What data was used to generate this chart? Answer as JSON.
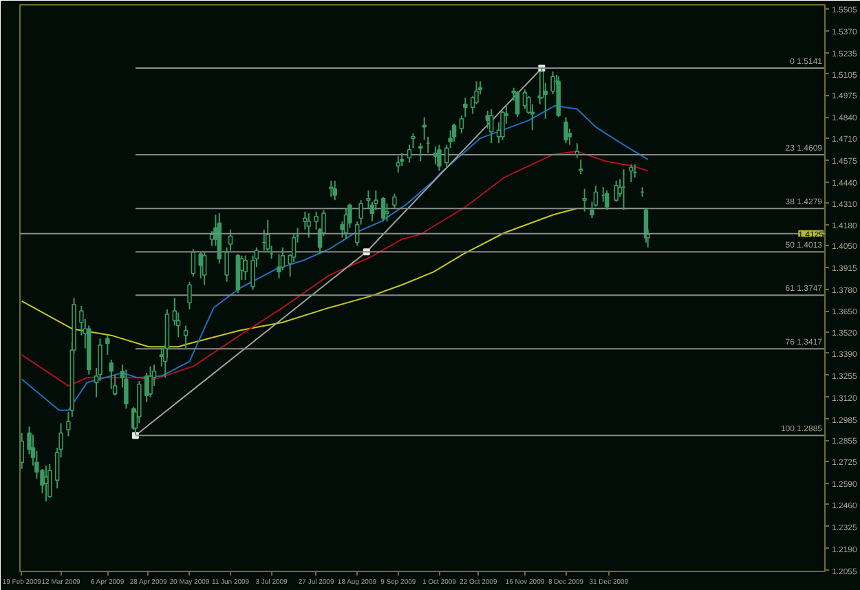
{
  "chart_data": {
    "type": "candlestick",
    "color": "#3a9a62",
    "xlim": [
      "2009-02-18",
      "2010-04-26"
    ],
    "ylim": [
      1.205,
      1.553
    ],
    "xticks": [
      {
        "value": "2009-02-19",
        "label": "19 Feb 2009"
      },
      {
        "value": "2009-03-12",
        "label": "12 Mar 2009"
      },
      {
        "value": "2009-04-06",
        "label": "6 Apr 2009"
      },
      {
        "value": "2009-04-28",
        "label": "28 Apr 2009"
      },
      {
        "value": "2009-05-20",
        "label": "20 May 2009"
      },
      {
        "value": "2009-06-11",
        "label": "11 Jun 2009"
      },
      {
        "value": "2009-07-03",
        "label": "3 Jul 2009"
      },
      {
        "value": "2009-07-27",
        "label": "27 Jul 2009"
      },
      {
        "value": "2009-08-18",
        "label": "18 Aug 2009"
      },
      {
        "value": "2009-09-09",
        "label": "9 Sep 2009"
      },
      {
        "value": "2009-10-01",
        "label": "1 Oct 2009"
      },
      {
        "value": "2009-10-22",
        "label": "22 Oct 2009"
      },
      {
        "value": "2009-11-16",
        "label": "16 Nov 2009"
      },
      {
        "value": "2009-12-08",
        "label": "8 Dec 2009"
      },
      {
        "value": "2009-12-31",
        "label": "31 Dec 2009"
      }
    ],
    "yticks": [
      1.5505,
      {
        "value": 1.537,
        "label": "1.5370"
      },
      1.5235,
      1.5105,
      1.4975,
      {
        "value": 1.484,
        "label": "1.4840"
      },
      {
        "value": 1.471,
        "label": "1.4710"
      },
      1.4575,
      {
        "value": 1.444,
        "label": "1.4440"
      },
      {
        "value": 1.431,
        "label": "1.4310"
      },
      {
        "value": 1.418,
        "label": "1.4180"
      },
      {
        "value": 1.405,
        "label": "1.4050"
      },
      1.3915,
      {
        "value": 1.378,
        "label": "1.3780"
      },
      {
        "value": 1.365,
        "label": "1.3650"
      },
      {
        "value": 1.352,
        "label": "1.3520"
      },
      {
        "value": 1.339,
        "label": "1.3390"
      },
      1.3255,
      {
        "value": 1.312,
        "label": "1.3120"
      },
      1.2985,
      1.2855,
      1.2725,
      {
        "value": 1.259,
        "label": "1.2590"
      },
      {
        "value": 1.246,
        "label": "1.2460"
      },
      1.2325,
      {
        "value": 1.219,
        "label": "1.2190"
      },
      1.2055
    ],
    "x": [
      "2009-02-19",
      "2009-02-23",
      "2009-02-25",
      "2009-02-27",
      "2009-03-02",
      "2009-03-04",
      "2009-03-06",
      "2009-03-10",
      "2009-03-12",
      "2009-03-16",
      "2009-03-18",
      "2009-03-19",
      "2009-03-23",
      "2009-03-25",
      "2009-03-27",
      "2009-03-31",
      "2009-04-02",
      "2009-04-06",
      "2009-04-08",
      "2009-04-10",
      "2009-04-14",
      "2009-04-16",
      "2009-04-20",
      "2009-04-21",
      "2009-04-23",
      "2009-04-27",
      "2009-04-29",
      "2009-05-01",
      "2009-05-05",
      "2009-05-07",
      "2009-05-08",
      "2009-05-12",
      "2009-05-14",
      "2009-05-18",
      "2009-05-20",
      "2009-05-22",
      "2009-05-26",
      "2009-05-28",
      "2009-06-01",
      "2009-06-03",
      "2009-06-05",
      "2009-06-09",
      "2009-06-11",
      "2009-06-15",
      "2009-06-17",
      "2009-06-19",
      "2009-06-23",
      "2009-06-25",
      "2009-06-29",
      "2009-07-01",
      "2009-07-03",
      "2009-07-07",
      "2009-07-09",
      "2009-07-13",
      "2009-07-15",
      "2009-07-17",
      "2009-07-21",
      "2009-07-23",
      "2009-07-27",
      "2009-07-29",
      "2009-07-31",
      "2009-08-04",
      "2009-08-06",
      "2009-08-10",
      "2009-08-12",
      "2009-08-14",
      "2009-08-18",
      "2009-08-20",
      "2009-08-24",
      "2009-08-26",
      "2009-08-28",
      "2009-09-01",
      "2009-09-03",
      "2009-09-07",
      "2009-09-09",
      "2009-09-11",
      "2009-09-15",
      "2009-09-17",
      "2009-09-21",
      "2009-09-23",
      "2009-09-25",
      "2009-09-29",
      "2009-10-01",
      "2009-10-05",
      "2009-10-07",
      "2009-10-09",
      "2009-10-13",
      "2009-10-15",
      "2009-10-19",
      "2009-10-21",
      "2009-10-23",
      "2009-10-27",
      "2009-10-29",
      "2009-11-02",
      "2009-11-04",
      "2009-11-06",
      "2009-11-10",
      "2009-11-12",
      "2009-11-16",
      "2009-11-18",
      "2009-11-20",
      "2009-11-24",
      "2009-11-25",
      "2009-11-27",
      "2009-12-01",
      "2009-12-03",
      "2009-12-04",
      "2009-12-08",
      "2009-12-10",
      "2009-12-14",
      "2009-12-16",
      "2009-12-18",
      "2009-12-22",
      "2009-12-24",
      "2009-12-28",
      "2009-12-30",
      "2010-01-04",
      "2010-01-06",
      "2010-01-08",
      "2010-01-12",
      "2010-01-14",
      "2010-01-18",
      "2010-01-20",
      "2010-01-21"
    ],
    "ohlc": [
      [
        1.272,
        1.29,
        1.268,
        1.285
      ],
      [
        1.29,
        1.294,
        1.277,
        1.28
      ],
      [
        1.281,
        1.289,
        1.27,
        1.275
      ],
      [
        1.272,
        1.279,
        1.262,
        1.266
      ],
      [
        1.267,
        1.268,
        1.253,
        1.258
      ],
      [
        1.259,
        1.27,
        1.248,
        1.263
      ],
      [
        1.251,
        1.271,
        1.25,
        1.267
      ],
      [
        1.261,
        1.281,
        1.256,
        1.278
      ],
      [
        1.28,
        1.296,
        1.275,
        1.29
      ],
      [
        1.292,
        1.303,
        1.288,
        1.297
      ],
      [
        1.304,
        1.346,
        1.3,
        1.341
      ],
      [
        1.341,
        1.373,
        1.339,
        1.369
      ],
      [
        1.358,
        1.368,
        1.35,
        1.365
      ],
      [
        1.351,
        1.36,
        1.342,
        1.354
      ],
      [
        1.354,
        1.356,
        1.326,
        1.329
      ],
      [
        1.321,
        1.33,
        1.312,
        1.325
      ],
      [
        1.326,
        1.348,
        1.322,
        1.344
      ],
      [
        1.348,
        1.35,
        1.338,
        1.345
      ],
      [
        1.333,
        1.335,
        1.317,
        1.328
      ],
      [
        1.314,
        1.326,
        1.313,
        1.319
      ],
      [
        1.328,
        1.332,
        1.318,
        1.324
      ],
      [
        1.323,
        1.329,
        1.305,
        1.308
      ],
      [
        1.305,
        1.306,
        1.292,
        1.293
      ],
      [
        1.293,
        1.305,
        1.289,
        1.303
      ],
      [
        1.3,
        1.322,
        1.296,
        1.32
      ],
      [
        1.325,
        1.327,
        1.309,
        1.313
      ],
      [
        1.314,
        1.331,
        1.312,
        1.325
      ],
      [
        1.324,
        1.332,
        1.319,
        1.328
      ],
      [
        1.338,
        1.343,
        1.331,
        1.337
      ],
      [
        1.334,
        1.345,
        1.324,
        1.342
      ],
      [
        1.342,
        1.366,
        1.336,
        1.363
      ],
      [
        1.359,
        1.373,
        1.356,
        1.365
      ],
      [
        1.356,
        1.364,
        1.349,
        1.359
      ],
      [
        1.35,
        1.356,
        1.342,
        1.353
      ],
      [
        1.37,
        1.383,
        1.366,
        1.381
      ],
      [
        1.388,
        1.403,
        1.386,
        1.401
      ],
      [
        1.4,
        1.401,
        1.385,
        1.393
      ],
      [
        1.387,
        1.401,
        1.381,
        1.399
      ],
      [
        1.409,
        1.414,
        1.405,
        1.412
      ],
      [
        1.416,
        1.424,
        1.405,
        1.409
      ],
      [
        1.419,
        1.425,
        1.394,
        1.397
      ],
      [
        1.387,
        1.404,
        1.383,
        1.401
      ],
      [
        1.406,
        1.415,
        1.402,
        1.411
      ],
      [
        1.399,
        1.4,
        1.376,
        1.378
      ],
      [
        1.39,
        1.399,
        1.384,
        1.397
      ],
      [
        1.389,
        1.399,
        1.384,
        1.396
      ],
      [
        1.38,
        1.399,
        1.378,
        1.396
      ],
      [
        1.397,
        1.404,
        1.392,
        1.402
      ],
      [
        1.407,
        1.415,
        1.402,
        1.407
      ],
      [
        1.403,
        1.421,
        1.401,
        1.412
      ],
      [
        1.4,
        1.405,
        1.397,
        1.4
      ],
      [
        1.392,
        1.4,
        1.385,
        1.389
      ],
      [
        1.392,
        1.404,
        1.39,
        1.399
      ],
      [
        1.394,
        1.4,
        1.386,
        1.399
      ],
      [
        1.398,
        1.412,
        1.395,
        1.41
      ],
      [
        1.411,
        1.416,
        1.407,
        1.411
      ],
      [
        1.42,
        1.426,
        1.415,
        1.422
      ],
      [
        1.417,
        1.425,
        1.41,
        1.42
      ],
      [
        1.42,
        1.426,
        1.415,
        1.423
      ],
      [
        1.415,
        1.416,
        1.4,
        1.404
      ],
      [
        1.413,
        1.427,
        1.411,
        1.425
      ],
      [
        1.44,
        1.445,
        1.435,
        1.441
      ],
      [
        1.44,
        1.445,
        1.433,
        1.436
      ],
      [
        1.418,
        1.42,
        1.41,
        1.415
      ],
      [
        1.413,
        1.428,
        1.409,
        1.424
      ],
      [
        1.43,
        1.431,
        1.416,
        1.419
      ],
      [
        1.407,
        1.42,
        1.405,
        1.418
      ],
      [
        1.422,
        1.433,
        1.418,
        1.431
      ],
      [
        1.433,
        1.439,
        1.428,
        1.434
      ],
      [
        1.43,
        1.432,
        1.42,
        1.425
      ],
      [
        1.431,
        1.439,
        1.427,
        1.433
      ],
      [
        1.434,
        1.435,
        1.42,
        1.422
      ],
      [
        1.425,
        1.431,
        1.42,
        1.426
      ],
      [
        1.43,
        1.437,
        1.428,
        1.435
      ],
      [
        1.454,
        1.46,
        1.45,
        1.456
      ],
      [
        1.458,
        1.462,
        1.454,
        1.457
      ],
      [
        1.459,
        1.467,
        1.456,
        1.464
      ],
      [
        1.471,
        1.474,
        1.465,
        1.472
      ],
      [
        1.466,
        1.468,
        1.457,
        1.465
      ],
      [
        1.479,
        1.484,
        1.47,
        1.478
      ],
      [
        1.468,
        1.472,
        1.462,
        1.468
      ],
      [
        1.462,
        1.466,
        1.455,
        1.46
      ],
      [
        1.464,
        1.467,
        1.451,
        1.454
      ],
      [
        1.456,
        1.467,
        1.453,
        1.465
      ],
      [
        1.471,
        1.476,
        1.465,
        1.469
      ],
      [
        1.479,
        1.48,
        1.469,
        1.472
      ],
      [
        1.477,
        1.485,
        1.474,
        1.483
      ],
      [
        1.492,
        1.496,
        1.484,
        1.49
      ],
      [
        1.49,
        1.497,
        1.486,
        1.496
      ],
      [
        1.493,
        1.506,
        1.492,
        1.5
      ],
      [
        1.502,
        1.506,
        1.498,
        1.501
      ],
      [
        1.485,
        1.488,
        1.477,
        1.482
      ],
      [
        1.475,
        1.489,
        1.468,
        1.485
      ],
      [
        1.472,
        1.481,
        1.468,
        1.476
      ],
      [
        1.472,
        1.488,
        1.47,
        1.487
      ],
      [
        1.486,
        1.492,
        1.48,
        1.485
      ],
      [
        1.5,
        1.502,
        1.494,
        1.499
      ],
      [
        1.499,
        1.5,
        1.484,
        1.486
      ],
      [
        1.491,
        1.501,
        1.489,
        1.499
      ],
      [
        1.487,
        1.497,
        1.486,
        1.496
      ],
      [
        1.487,
        1.492,
        1.476,
        1.486
      ],
      [
        1.497,
        1.5,
        1.492,
        1.496
      ],
      [
        1.496,
        1.514,
        1.495,
        1.512
      ],
      [
        1.5,
        1.505,
        1.483,
        1.498
      ],
      [
        1.5,
        1.512,
        1.498,
        1.509
      ],
      [
        1.506,
        1.51,
        1.504,
        1.506
      ],
      [
        1.506,
        1.509,
        1.484,
        1.485
      ],
      [
        1.481,
        1.484,
        1.468,
        1.47
      ],
      [
        1.474,
        1.477,
        1.467,
        1.472
      ],
      [
        1.461,
        1.468,
        1.459,
        1.463
      ],
      [
        1.451,
        1.458,
        1.449,
        1.452
      ],
      [
        1.433,
        1.44,
        1.426,
        1.434
      ],
      [
        1.427,
        1.432,
        1.422,
        1.424
      ],
      [
        1.43,
        1.442,
        1.429,
        1.438
      ],
      [
        1.436,
        1.441,
        1.432,
        1.436
      ],
      [
        1.437,
        1.439,
        1.427,
        1.429
      ],
      [
        1.433,
        1.445,
        1.432,
        1.442
      ],
      [
        1.437,
        1.446,
        1.435,
        1.441
      ],
      [
        1.441,
        1.452,
        1.427,
        1.441
      ],
      [
        1.451,
        1.455,
        1.444,
        1.453
      ],
      [
        1.45,
        1.455,
        1.447,
        1.45
      ],
      [
        1.438,
        1.441,
        1.435,
        1.438
      ],
      [
        1.427,
        1.428,
        1.407,
        1.41
      ],
      [
        1.41,
        1.415,
        1.404,
        1.412
      ]
    ],
    "series": [
      {
        "type": "line",
        "color": "#c8c81e",
        "x": [
          "2009-02-19",
          "2009-03-18",
          "2009-04-08",
          "2009-04-28",
          "2009-05-14",
          "2009-05-20",
          "2009-06-16",
          "2009-07-09",
          "2009-08-03",
          "2009-08-25",
          "2009-09-11",
          "2009-09-28",
          "2009-10-14",
          "2009-11-05",
          "2009-12-01",
          "2009-12-14",
          "2010-01-21"
        ],
        "values": [
          1.371,
          1.354,
          1.35,
          1.343,
          1.343,
          1.345,
          1.353,
          1.358,
          1.367,
          1.374,
          1.381,
          1.389,
          1.4,
          1.413,
          1.424,
          1.428,
          1.428
        ]
      },
      {
        "type": "line",
        "color": "#b0101e",
        "x": [
          "2009-02-19",
          "2009-03-16",
          "2009-03-26",
          "2009-04-22",
          "2009-05-01",
          "2009-05-22",
          "2009-06-16",
          "2009-07-09",
          "2009-08-03",
          "2009-08-25",
          "2009-09-11",
          "2009-09-21",
          "2009-09-28",
          "2009-10-14",
          "2009-11-05",
          "2009-12-01",
          "2009-12-14",
          "2009-12-29",
          "2010-01-13",
          "2010-01-21"
        ],
        "values": [
          1.338,
          1.319,
          1.324,
          1.324,
          1.323,
          1.331,
          1.35,
          1.367,
          1.387,
          1.398,
          1.409,
          1.412,
          1.417,
          1.428,
          1.447,
          1.461,
          1.463,
          1.457,
          1.454,
          1.451
        ]
      },
      {
        "type": "line",
        "color": "#1f6fc0",
        "x": [
          "2009-02-19",
          "2009-03-11",
          "2009-03-16",
          "2009-03-26",
          "2009-04-14",
          "2009-04-22",
          "2009-05-05",
          "2009-05-20",
          "2009-06-02",
          "2009-06-16",
          "2009-07-06",
          "2009-07-20",
          "2009-08-03",
          "2009-08-17",
          "2009-08-31",
          "2009-09-14",
          "2009-09-28",
          "2009-10-02",
          "2009-10-23",
          "2009-11-18",
          "2009-12-02",
          "2009-12-14",
          "2009-12-24",
          "2010-01-08",
          "2010-01-21"
        ],
        "values": [
          1.323,
          1.304,
          1.304,
          1.321,
          1.327,
          1.324,
          1.325,
          1.334,
          1.367,
          1.379,
          1.391,
          1.396,
          1.403,
          1.413,
          1.42,
          1.431,
          1.445,
          1.45,
          1.471,
          1.482,
          1.491,
          1.489,
          1.478,
          1.467,
          1.458
        ]
      },
      {
        "type": "line",
        "color": "#a0a0a0",
        "marker": "square",
        "x": [
          "2009-04-21",
          "2009-08-23",
          "2009-11-25"
        ],
        "values": [
          1.2885,
          1.4013,
          1.5141
        ]
      },
      {
        "type": "line",
        "color": "#8a8a8a",
        "x": [
          "2009-04-21",
          "2010-04-26"
        ],
        "values": [
          1.5141,
          1.5141
        ]
      },
      {
        "type": "line",
        "color": "#8a8a8a",
        "x": [
          "2009-04-21",
          "2010-04-26"
        ],
        "values": [
          1.4609,
          1.4609
        ]
      },
      {
        "type": "line",
        "color": "#8a8a8a",
        "x": [
          "2009-04-21",
          "2010-04-26"
        ],
        "values": [
          1.4279,
          1.4279
        ]
      },
      {
        "type": "line",
        "color": "#8a8a8a",
        "x": [
          "2009-04-21",
          "2010-04-26"
        ],
        "values": [
          1.4013,
          1.4013
        ]
      },
      {
        "type": "line",
        "color": "#8a8a8a",
        "x": [
          "2009-04-21",
          "2010-04-26"
        ],
        "values": [
          1.3747,
          1.3747
        ]
      },
      {
        "type": "line",
        "color": "#8a8a8a",
        "x": [
          "2009-04-21",
          "2010-04-26"
        ],
        "values": [
          1.3417,
          1.3417
        ]
      },
      {
        "type": "line",
        "color": "#8a8a8a",
        "x": [
          "2009-04-21",
          "2010-04-26"
        ],
        "values": [
          1.2885,
          1.2885
        ]
      }
    ],
    "ref_lines": [
      {
        "axis": "y",
        "value": 1.4125,
        "label": "1.4125",
        "color": "#8a8a8a"
      }
    ],
    "annotations": [
      {
        "text": "0 1.5141",
        "x": "2010-04-26",
        "y": 1.5141
      },
      {
        "text": "23 1.4609",
        "x": "2010-04-26",
        "y": 1.4609
      },
      {
        "text": "38 1.4279",
        "x": "2010-04-26",
        "y": 1.4279
      },
      {
        "text": "50 1.4013",
        "x": "2010-04-26",
        "y": 1.4013
      },
      {
        "text": "61 1.3747",
        "x": "2010-04-26",
        "y": 1.3747
      },
      {
        "text": "76 1.3417",
        "x": "2010-04-26",
        "y": 1.3417
      },
      {
        "text": "100 1.2885",
        "x": "2010-04-26",
        "y": 1.2885
      }
    ]
  }
}
